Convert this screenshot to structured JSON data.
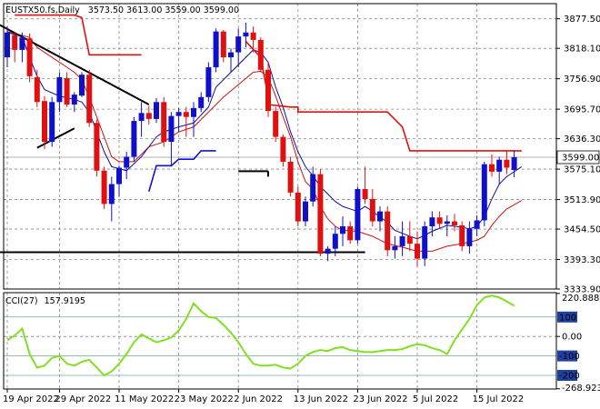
{
  "header": {
    "symbol_timeframe": "EUSTX50.fs,Daily",
    "ohlc": "3573.50 3613.00 3559.00 3599.00"
  },
  "cci_header": {
    "label": "CCI(27)",
    "value": "157.9195"
  },
  "colors": {
    "bull": "#1010c8",
    "bear": "#e01010",
    "stop_high": "#e01010",
    "stop_low": "#1010e0",
    "cci": "#80e020",
    "trend": "#000000",
    "ma_fast": "#1010a0",
    "ma_slow": "#d01010"
  },
  "chart_data": [
    {
      "type": "candlestick",
      "title": "EUSTX50.fs,Daily",
      "ylim": [
        3333.9,
        3908
      ],
      "y_ticks": [
        "3877.50",
        "3818.10",
        "3756.90",
        "3695.70",
        "3636.30",
        "3575.10",
        "3513.90",
        "3454.50",
        "3393.30",
        "3333.90"
      ],
      "current_price": "3599.00",
      "x_labels": [
        {
          "i": 0,
          "label": "19 Apr 2022"
        },
        {
          "i": 7,
          "label": "29 Apr 2022"
        },
        {
          "i": 15,
          "label": "11 May 2022"
        },
        {
          "i": 23,
          "label": "23 May 2022"
        },
        {
          "i": 31,
          "label": "2 Jun 2022"
        },
        {
          "i": 39,
          "label": "13 Jun 2022"
        },
        {
          "i": 47,
          "label": "23 Jun 2022"
        },
        {
          "i": 55,
          "label": "5 Jul 2022"
        },
        {
          "i": 63,
          "label": "15 Jul 2022"
        }
      ],
      "candles": [
        [
          3800,
          3862,
          3780,
          3850
        ],
        [
          3845,
          3850,
          3790,
          3815
        ],
        [
          3815,
          3850,
          3790,
          3840
        ],
        [
          3838,
          3848,
          3750,
          3762
        ],
        [
          3760,
          3775,
          3700,
          3710
        ],
        [
          3712,
          3722,
          3615,
          3630
        ],
        [
          3630,
          3720,
          3620,
          3710
        ],
        [
          3710,
          3770,
          3690,
          3760
        ],
        [
          3758,
          3770,
          3700,
          3705
        ],
        [
          3705,
          3730,
          3690,
          3725
        ],
        [
          3723,
          3770,
          3720,
          3765
        ],
        [
          3765,
          3775,
          3660,
          3668
        ],
        [
          3668,
          3675,
          3560,
          3572
        ],
        [
          3572,
          3580,
          3495,
          3505
        ],
        [
          3505,
          3560,
          3470,
          3545
        ],
        [
          3545,
          3582,
          3520,
          3578
        ],
        [
          3578,
          3610,
          3555,
          3600
        ],
        [
          3600,
          3680,
          3590,
          3672
        ],
        [
          3672,
          3710,
          3640,
          3688
        ],
        [
          3688,
          3702,
          3665,
          3676
        ],
        [
          3676,
          3718,
          3668,
          3710
        ],
        [
          3710,
          3720,
          3620,
          3630
        ],
        [
          3630,
          3690,
          3580,
          3682
        ],
        [
          3682,
          3698,
          3650,
          3690
        ],
        [
          3690,
          3700,
          3640,
          3680
        ],
        [
          3680,
          3710,
          3640,
          3698
        ],
        [
          3698,
          3730,
          3690,
          3720
        ],
        [
          3720,
          3790,
          3710,
          3780
        ],
        [
          3780,
          3858,
          3770,
          3852
        ],
        [
          3852,
          3855,
          3790,
          3800
        ],
        [
          3800,
          3818,
          3770,
          3810
        ],
        [
          3810,
          3858,
          3780,
          3842
        ],
        [
          3842,
          3870,
          3820,
          3850
        ],
        [
          3850,
          3862,
          3810,
          3835
        ],
        [
          3835,
          3840,
          3770,
          3775
        ],
        [
          3775,
          3790,
          3680,
          3692
        ],
        [
          3692,
          3700,
          3630,
          3640
        ],
        [
          3640,
          3645,
          3580,
          3590
        ],
        [
          3590,
          3600,
          3520,
          3528
        ],
        [
          3528,
          3540,
          3460,
          3470
        ],
        [
          3470,
          3520,
          3460,
          3510
        ],
        [
          3510,
          3580,
          3500,
          3565
        ],
        [
          3565,
          3575,
          3400,
          3405
        ],
        [
          3405,
          3420,
          3390,
          3415
        ],
        [
          3415,
          3460,
          3400,
          3445
        ],
        [
          3445,
          3480,
          3420,
          3460
        ],
        [
          3460,
          3470,
          3425,
          3432
        ],
        [
          3432,
          3540,
          3425,
          3535
        ],
        [
          3535,
          3580,
          3505,
          3515
        ],
        [
          3515,
          3535,
          3460,
          3470
        ],
        [
          3470,
          3500,
          3450,
          3490
        ],
        [
          3490,
          3500,
          3400,
          3412
        ],
        [
          3412,
          3440,
          3395,
          3420
        ],
        [
          3420,
          3470,
          3400,
          3440
        ],
        [
          3440,
          3470,
          3410,
          3425
        ],
        [
          3425,
          3450,
          3380,
          3395
        ],
        [
          3395,
          3470,
          3380,
          3460
        ],
        [
          3460,
          3490,
          3440,
          3478
        ],
        [
          3478,
          3490,
          3455,
          3465
        ],
        [
          3465,
          3482,
          3440,
          3470
        ],
        [
          3470,
          3485,
          3450,
          3462
        ],
        [
          3462,
          3470,
          3410,
          3420
        ],
        [
          3420,
          3470,
          3405,
          3455
        ],
        [
          3455,
          3482,
          3440,
          3472
        ],
        [
          3472,
          3590,
          3460,
          3585
        ],
        [
          3585,
          3605,
          3560,
          3570
        ],
        [
          3570,
          3600,
          3545,
          3594
        ],
        [
          3594,
          3613,
          3565,
          3578
        ],
        [
          3573.5,
          3613,
          3559,
          3599
        ]
      ],
      "ma_fast": [
        [
          0,
          3850
        ],
        [
          2,
          3842
        ],
        [
          3,
          3800
        ],
        [
          4,
          3762
        ],
        [
          5,
          3735
        ],
        [
          7,
          3722
        ],
        [
          9,
          3715
        ],
        [
          10,
          3710
        ],
        [
          11,
          3690
        ],
        [
          12,
          3650
        ],
        [
          13,
          3610
        ],
        [
          14,
          3580
        ],
        [
          16,
          3572
        ],
        [
          18,
          3600
        ],
        [
          20,
          3640
        ],
        [
          21,
          3650
        ],
        [
          23,
          3660
        ],
        [
          25,
          3668
        ],
        [
          27,
          3700
        ],
        [
          28,
          3740
        ],
        [
          30,
          3770
        ],
        [
          33,
          3815
        ],
        [
          34,
          3810
        ],
        [
          35,
          3790
        ],
        [
          36,
          3740
        ],
        [
          37,
          3700
        ],
        [
          38,
          3650
        ],
        [
          39,
          3610
        ],
        [
          40,
          3580
        ],
        [
          41,
          3562
        ],
        [
          42,
          3540
        ],
        [
          43,
          3525
        ],
        [
          44,
          3510
        ],
        [
          45,
          3500
        ],
        [
          47,
          3490
        ],
        [
          48,
          3500
        ],
        [
          49,
          3490
        ],
        [
          51,
          3468
        ],
        [
          52,
          3452
        ],
        [
          54,
          3440
        ],
        [
          55,
          3435
        ],
        [
          56,
          3442
        ],
        [
          57,
          3450
        ],
        [
          59,
          3462
        ],
        [
          61,
          3458
        ],
        [
          62,
          3455
        ],
        [
          63,
          3460
        ],
        [
          64,
          3480
        ],
        [
          65,
          3515
        ],
        [
          66,
          3545
        ],
        [
          67,
          3560
        ],
        [
          69,
          3580
        ]
      ],
      "ma_slow": [
        [
          0,
          3852
        ],
        [
          3,
          3840
        ],
        [
          4,
          3820
        ],
        [
          6,
          3800
        ],
        [
          8,
          3780
        ],
        [
          9,
          3770
        ],
        [
          10,
          3755
        ],
        [
          11,
          3720
        ],
        [
          12,
          3680
        ],
        [
          13,
          3640
        ],
        [
          14,
          3600
        ],
        [
          15,
          3590
        ],
        [
          17,
          3590
        ],
        [
          19,
          3620
        ],
        [
          21,
          3630
        ],
        [
          23,
          3650
        ],
        [
          25,
          3660
        ],
        [
          27,
          3690
        ],
        [
          29,
          3720
        ],
        [
          31,
          3745
        ],
        [
          33,
          3770
        ],
        [
          34,
          3772
        ],
        [
          35,
          3760
        ],
        [
          36,
          3722
        ],
        [
          37,
          3680
        ],
        [
          38,
          3640
        ],
        [
          39,
          3590
        ],
        [
          40,
          3550
        ],
        [
          41,
          3535
        ],
        [
          42,
          3500
        ],
        [
          43,
          3475
        ],
        [
          44,
          3460
        ],
        [
          45,
          3452
        ],
        [
          47,
          3450
        ],
        [
          49,
          3440
        ],
        [
          51,
          3425
        ],
        [
          53,
          3418
        ],
        [
          55,
          3410
        ],
        [
          57,
          3410
        ],
        [
          59,
          3420
        ],
        [
          61,
          3425
        ],
        [
          63,
          3432
        ],
        [
          64,
          3440
        ],
        [
          65,
          3462
        ],
        [
          66,
          3480
        ],
        [
          67,
          3495
        ],
        [
          69,
          3512
        ]
      ],
      "stop_high": [
        [
          [
            1,
            3885
          ],
          [
            9,
            3885
          ],
          [
            9,
            3885
          ],
          [
            10,
            3880
          ],
          [
            11,
            3805
          ],
          [
            18,
            3805
          ]
        ],
        [
          [
            32,
            3832
          ],
          [
            34,
            3800
          ],
          [
            35,
            3720
          ],
          [
            35,
            3705
          ],
          [
            38,
            3700
          ],
          [
            39,
            3700
          ],
          [
            39,
            3690
          ],
          [
            51,
            3690
          ],
          [
            52,
            3675
          ],
          [
            53,
            3660
          ],
          [
            54,
            3612
          ],
          [
            67,
            3612
          ],
          [
            69,
            3612
          ]
        ]
      ],
      "stop_low": [
        [
          [
            19,
            3530
          ],
          [
            20,
            3582
          ],
          [
            22,
            3582
          ],
          [
            23,
            3595
          ],
          [
            25,
            3595
          ],
          [
            26,
            3612
          ],
          [
            28,
            3612
          ]
        ]
      ],
      "trend_lines": [
        {
          "from": [
            -1,
            3865
          ],
          "to": [
            19,
            3705
          ]
        },
        {
          "from": [
            4,
            3618
          ],
          "to": [
            9,
            3657
          ]
        },
        {
          "from": [
            -1,
            3408
          ],
          "to": [
            48,
            3408
          ]
        },
        {
          "from": [
            31,
            3571
          ],
          "to": [
            35,
            3571
          ]
        },
        {
          "from": [
            35,
            3571
          ],
          "to": [
            35,
            3560
          ]
        }
      ]
    },
    {
      "type": "line",
      "title": "CCI(27) 157.9195",
      "ylim": [
        -270,
        225
      ],
      "y_ticks": [
        "220.8885",
        "100",
        "0.00",
        "-100",
        "-200",
        "-268.9239"
      ],
      "level_lines": [
        100,
        -100,
        -200
      ],
      "series": [
        {
          "values": [
            -20,
            5,
            40,
            -90,
            -160,
            -150,
            -110,
            -100,
            -140,
            -150,
            -130,
            -120,
            -160,
            -200,
            -180,
            -140,
            -90,
            -30,
            10,
            -10,
            -30,
            -20,
            -5,
            30,
            90,
            170,
            130,
            100,
            95,
            60,
            20,
            -30,
            -90,
            -140,
            -150,
            -150,
            -145,
            -160,
            -165,
            -140,
            -100,
            -80,
            -70,
            -75,
            -60,
            -55,
            -70,
            -75,
            -80,
            -80,
            -75,
            -70,
            -70,
            -65,
            -50,
            -40,
            -45,
            -60,
            -70,
            -90,
            -20,
            35,
            90,
            160,
            200,
            210,
            200,
            180,
            158
          ]
        }
      ]
    }
  ],
  "grid": true
}
